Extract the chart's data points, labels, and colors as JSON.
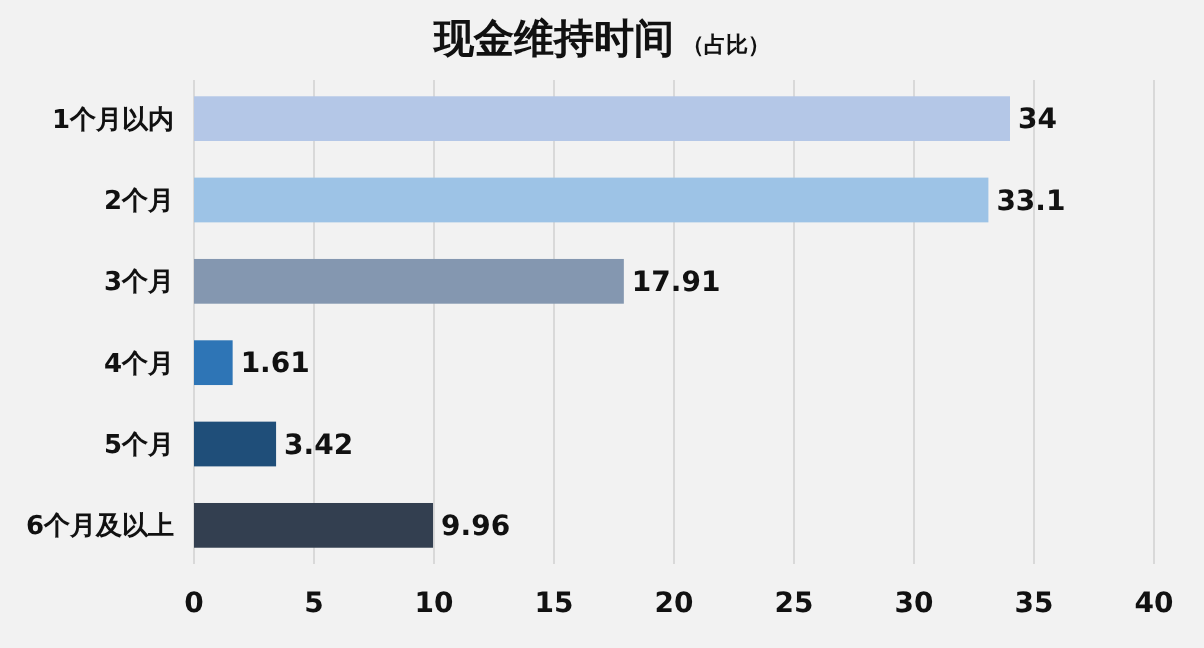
{
  "chart_data": {
    "type": "bar",
    "orientation": "horizontal",
    "title": "现金维持时间",
    "subtitle": "（占比）",
    "categories": [
      "1个月以内",
      "2个月",
      "3个月",
      "4个月",
      "5个月",
      "6个月及以上"
    ],
    "values": [
      34,
      33.1,
      17.91,
      1.61,
      3.42,
      9.96
    ],
    "colors": [
      "#b4c7e7",
      "#9dc3e6",
      "#8497b0",
      "#2e75b6",
      "#1f4e79",
      "#333f50"
    ],
    "xlim": [
      0,
      40
    ],
    "xticks": [
      0,
      5,
      10,
      15,
      20,
      25,
      30,
      35,
      40
    ],
    "grid": "x",
    "data_labels": true
  }
}
